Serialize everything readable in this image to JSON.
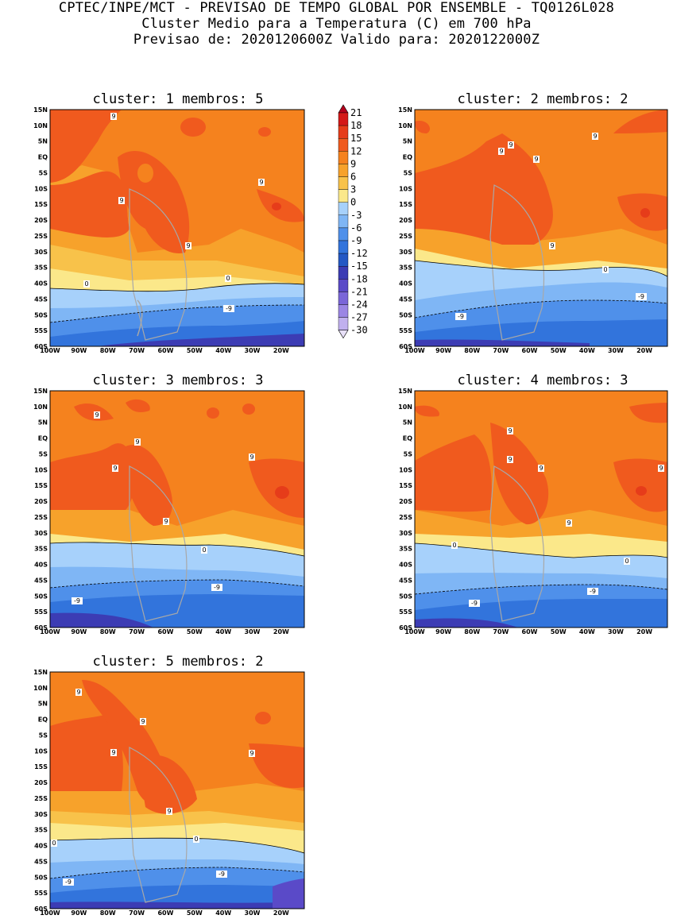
{
  "header": {
    "line1": "CPTEC/INPE/MCT - PREVISAO DE TEMPO GLOBAL POR ENSEMBLE - TQ0126L028",
    "line2": "Cluster Medio para a Temperatura (C) em 700 hPa",
    "line3": "Previsao de: 2020120600Z   Valido para: 2020122000Z"
  },
  "colorbar": {
    "labels": [
      "21",
      "18",
      "15",
      "12",
      "9",
      "6",
      "3",
      "0",
      "-3",
      "-6",
      "-9",
      "-12",
      "-15",
      "-18",
      "-21",
      "-24",
      "-27",
      "-30"
    ],
    "colors": [
      "#b4001c",
      "#d41818",
      "#e63c1a",
      "#f05a1e",
      "#f5821e",
      "#f7a22b",
      "#f8c24a",
      "#fbe88a",
      "#a7d1fb",
      "#7fb6f5",
      "#4f90ea",
      "#3274dc",
      "#2458c4",
      "#3c3cb4",
      "#5a4ac8",
      "#7a66d8",
      "#9b86e4",
      "#c0b0ee",
      "#e8e0f8"
    ]
  },
  "axes": {
    "lat_labels": [
      "15N",
      "10N",
      "5N",
      "EQ",
      "5S",
      "10S",
      "15S",
      "20S",
      "25S",
      "30S",
      "35S",
      "40S",
      "45S",
      "50S",
      "55S",
      "60S"
    ],
    "lon_labels": [
      "100W",
      "90W",
      "80W",
      "70W",
      "60W",
      "50W",
      "40W",
      "30W",
      "20W"
    ]
  },
  "panels": [
    {
      "title": "cluster: 1   membros: 5",
      "labels": [
        "9",
        "9",
        "9",
        "9",
        "0",
        "0",
        "-9"
      ]
    },
    {
      "title": "cluster: 2   membros: 2",
      "labels": [
        "9",
        "9",
        "9",
        "9",
        "9",
        "0",
        "-9",
        "-9"
      ]
    },
    {
      "title": "cluster: 3   membros: 3",
      "labels": [
        "9",
        "9",
        "9",
        "9",
        "9",
        "0",
        "-9",
        "-9"
      ]
    },
    {
      "title": "cluster: 4   membros: 3",
      "labels": [
        "9",
        "9",
        "9",
        "9",
        "9",
        "0",
        "0",
        "-9",
        "-9"
      ]
    },
    {
      "title": "cluster: 5   membros: 2",
      "labels": [
        "9",
        "9",
        "9",
        "9",
        "9",
        "0",
        "0",
        "-9",
        "-9"
      ]
    }
  ]
}
